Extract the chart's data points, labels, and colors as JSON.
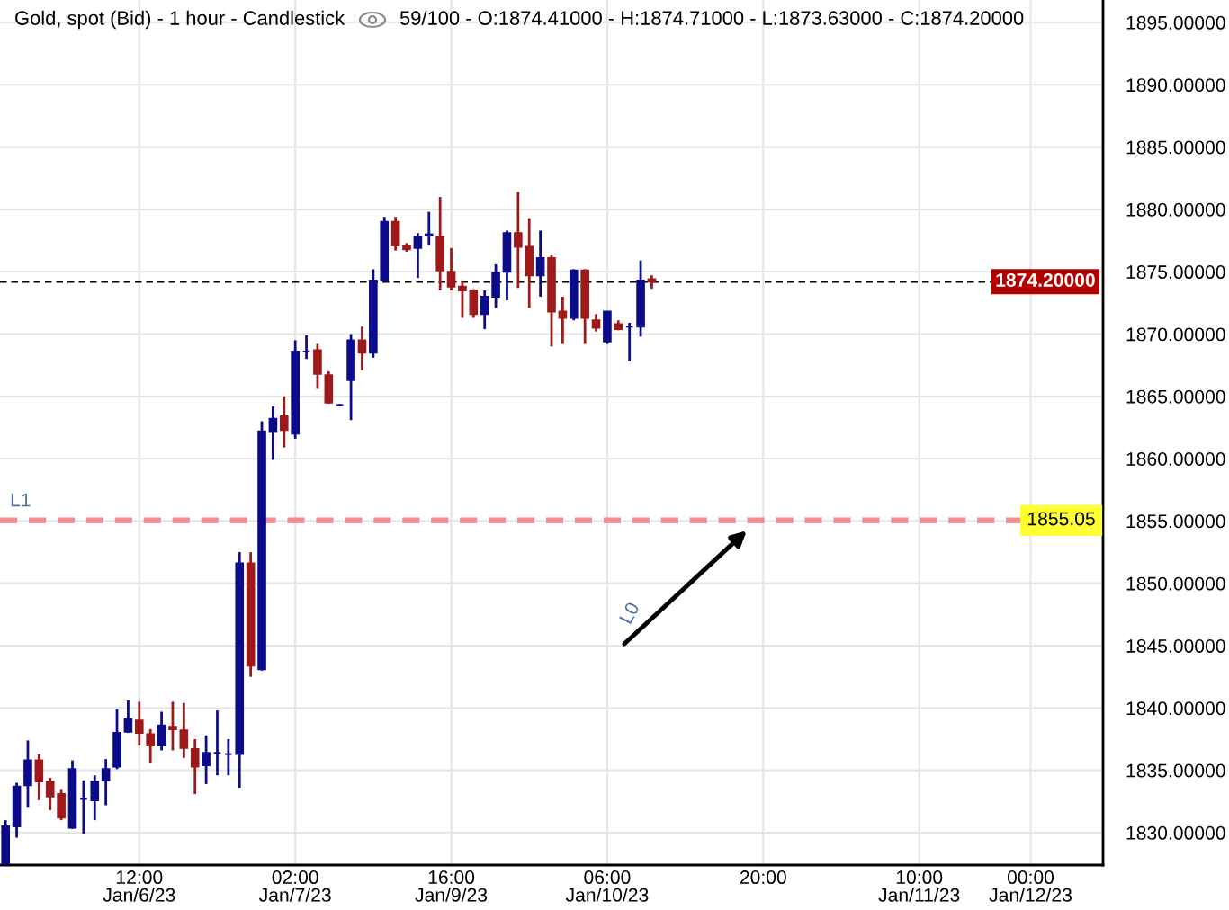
{
  "chart_data": {
    "type": "candlestick",
    "title": "Gold, spot (Bid) - 1 hour - Candlestick",
    "subtitle": "59/100 - O:1874.41000 - H:1874.71000 - L:1873.63000 - C:1874.20000",
    "categories": [
      null,
      null,
      null,
      null,
      null,
      null,
      null,
      null,
      null,
      null,
      null,
      null,
      "12:00\nJan/6/23",
      null,
      null,
      null,
      null,
      null,
      null,
      null,
      null,
      null,
      null,
      null,
      null,
      null,
      "02:00\nJan/7/23",
      null,
      null,
      null,
      null,
      null,
      null,
      null,
      null,
      null,
      null,
      null,
      null,
      null,
      "16:00\nJan/9/23",
      null,
      null,
      null,
      null,
      null,
      null,
      null,
      null,
      null,
      null,
      null,
      null,
      null,
      "06:00\nJan/10/23",
      null,
      null,
      null,
      null,
      null,
      null,
      null,
      null,
      null,
      null,
      null,
      null,
      null,
      "20:00",
      null,
      null,
      null,
      null,
      null,
      null,
      null,
      null,
      null,
      null,
      null,
      null,
      null,
      "10:00\nJan/11/23",
      null,
      null,
      null,
      null,
      null,
      null,
      null,
      null,
      null,
      "00:00\nJan/12/23",
      null,
      null,
      null,
      null,
      null,
      null
    ],
    "ohlc": [
      [
        1827.5,
        1831.0,
        1827.5,
        1830.5
      ],
      [
        1830.5,
        1834.0,
        1829.6,
        1833.7
      ],
      [
        1833.8,
        1837.4,
        1832.0,
        1835.8
      ],
      [
        1835.8,
        1836.3,
        1832.6,
        1834.1
      ],
      [
        1834.1,
        1834.4,
        1831.8,
        1832.9
      ],
      [
        1833.1,
        1833.5,
        1831.0,
        1831.2
      ],
      [
        1830.4,
        1835.8,
        1830.3,
        1835.1
      ],
      [
        1832.7,
        1834.2,
        1829.9,
        1832.7
      ],
      [
        1832.6,
        1834.6,
        1831.0,
        1834.1
      ],
      [
        1834.2,
        1835.9,
        1832.2,
        1835.1
      ],
      [
        1835.3,
        1839.9,
        1835.1,
        1838.0
      ],
      [
        1838.1,
        1840.6,
        1838.0,
        1839.1
      ],
      [
        1839.0,
        1840.5,
        1837.0,
        1838.0
      ],
      [
        1837.9,
        1838.3,
        1835.6,
        1837.0
      ],
      [
        1837.0,
        1839.7,
        1836.6,
        1838.6
      ],
      [
        1838.5,
        1840.5,
        1836.6,
        1838.3
      ],
      [
        1838.2,
        1840.4,
        1836.0,
        1836.8
      ],
      [
        1836.7,
        1837.5,
        1833.1,
        1835.3
      ],
      [
        1835.4,
        1837.8,
        1833.9,
        1836.4
      ],
      [
        1836.4,
        1839.8,
        1834.6,
        1836.4
      ],
      [
        1836.3,
        1837.5,
        1834.6,
        1836.3
      ],
      [
        1836.3,
        1852.5,
        1833.6,
        1851.6
      ],
      [
        1851.6,
        1852.5,
        1842.5,
        1843.4
      ],
      [
        1843.1,
        1863.0,
        1843.0,
        1862.2
      ],
      [
        1862.2,
        1864.2,
        1859.9,
        1863.2
      ],
      [
        1863.4,
        1865.0,
        1860.9,
        1862.3
      ],
      [
        1862.0,
        1869.5,
        1861.6,
        1868.6
      ],
      [
        1868.6,
        1869.9,
        1868.0,
        1868.6
      ],
      [
        1868.7,
        1869.2,
        1865.6,
        1866.8
      ],
      [
        1866.7,
        1867.0,
        1864.4,
        1864.5
      ],
      [
        1864.3,
        1864.4,
        1864.2,
        1864.3
      ],
      [
        1866.3,
        1870.0,
        1863.1,
        1869.5
      ],
      [
        1869.5,
        1870.6,
        1867.1,
        1868.5
      ],
      [
        1868.5,
        1875.2,
        1868.1,
        1874.3
      ],
      [
        1874.3,
        1879.4,
        1874.2,
        1879.0
      ],
      [
        1879.0,
        1879.4,
        1876.7,
        1877.1
      ],
      [
        1877.1,
        1877.3,
        1876.6,
        1876.8
      ],
      [
        1876.9,
        1878.1,
        1874.5,
        1877.8
      ],
      [
        1877.9,
        1879.8,
        1877.1,
        1878.0
      ],
      [
        1877.8,
        1881.0,
        1873.5,
        1875.1
      ],
      [
        1875.0,
        1876.9,
        1873.5,
        1873.8
      ],
      [
        1873.8,
        1874.3,
        1871.3,
        1873.5
      ],
      [
        1873.5,
        1873.6,
        1871.3,
        1871.6
      ],
      [
        1871.6,
        1873.5,
        1870.4,
        1873.0
      ],
      [
        1873.0,
        1875.6,
        1872.1,
        1874.9
      ],
      [
        1875.0,
        1878.3,
        1872.7,
        1878.1
      ],
      [
        1878.1,
        1881.4,
        1873.7,
        1877.0
      ],
      [
        1877.0,
        1879.3,
        1872.1,
        1874.7
      ],
      [
        1874.7,
        1878.3,
        1873.0,
        1876.1
      ],
      [
        1876.1,
        1876.3,
        1869.0,
        1871.8
      ],
      [
        1871.8,
        1873.0,
        1869.2,
        1871.3
      ],
      [
        1871.3,
        1875.2,
        1871.1,
        1875.1
      ],
      [
        1875.1,
        1875.2,
        1869.2,
        1871.3
      ],
      [
        1871.1,
        1871.6,
        1870.2,
        1870.5
      ],
      [
        1869.4,
        1871.8,
        1869.2,
        1871.8
      ],
      [
        1870.8,
        1871.1,
        1870.3,
        1870.4
      ],
      [
        1870.6,
        1870.9,
        1867.8,
        1870.6
      ],
      [
        1870.6,
        1875.9,
        1869.8,
        1874.3
      ],
      [
        1874.41,
        1874.71,
        1873.63,
        1874.2
      ],
      null,
      null,
      null,
      null,
      null,
      null,
      null,
      null,
      null,
      null,
      null,
      null,
      null,
      null,
      null,
      null,
      null,
      null,
      null,
      null,
      null,
      null,
      null,
      null,
      null,
      null,
      null,
      null,
      null,
      null,
      null,
      null,
      null,
      null,
      null,
      null,
      null,
      null,
      null,
      null
    ],
    "colors": [
      "#0c0c8a",
      "#0c0c8a",
      "#0c0c8a",
      "#9e1a1a",
      "#9e1a1a",
      "#9e1a1a",
      "#0c0c8a",
      "#0c0c8a",
      "#0c0c8a",
      "#0c0c8a",
      "#0c0c8a",
      "#0c0c8a",
      "#9e1a1a",
      "#9e1a1a",
      "#0c0c8a",
      "#9e1a1a",
      "#9e1a1a",
      "#9e1a1a",
      "#0c0c8a",
      "#0c0c8a",
      "#0c0c8a",
      "#0c0c8a",
      "#9e1a1a",
      "#0c0c8a",
      "#0c0c8a",
      "#9e1a1a",
      "#0c0c8a",
      "#0c0c8a",
      "#9e1a1a",
      "#9e1a1a",
      "#0c0c8a",
      "#0c0c8a",
      "#9e1a1a",
      "#0c0c8a",
      "#0c0c8a",
      "#9e1a1a",
      "#9e1a1a",
      "#0c0c8a",
      "#0c0c8a",
      "#9e1a1a",
      "#9e1a1a",
      "#9e1a1a",
      "#9e1a1a",
      "#0c0c8a",
      "#0c0c8a",
      "#0c0c8a",
      "#9e1a1a",
      "#9e1a1a",
      "#0c0c8a",
      "#9e1a1a",
      "#9e1a1a",
      "#0c0c8a",
      "#9e1a1a",
      "#9e1a1a",
      "#0c0c8a",
      "#9e1a1a",
      "#0c0c8a",
      "#0c0c8a",
      "#9e1a1a",
      null,
      null,
      null,
      null,
      null,
      null,
      null,
      null,
      null,
      null,
      null,
      null,
      null,
      null,
      null,
      null,
      null,
      null,
      null,
      null,
      null,
      null,
      null,
      null,
      null,
      null,
      null,
      null,
      null,
      null,
      null,
      null,
      null,
      null,
      null,
      null,
      null,
      null,
      null,
      null
    ],
    "ref_lines": [
      {
        "axis": "y",
        "value": 1874.2,
        "label": "1874.20000",
        "color": "#000000",
        "line_style": "dashed"
      },
      {
        "axis": "y",
        "value": 1855.05,
        "label": "1855.05",
        "color": "#ee8e8e",
        "line_style": "dashed"
      }
    ],
    "annotations": [
      {
        "text": "L1",
        "y": 1855.05
      },
      "L0"
    ],
    "ylim": [
      1827.4,
      1896.8
    ],
    "yticks": [
      {
        "value": 1830,
        "label": "1830.00000"
      },
      {
        "value": 1835,
        "label": "1835.00000"
      },
      {
        "value": 1840,
        "label": "1840.00000"
      },
      {
        "value": 1845,
        "label": "1845.00000"
      },
      {
        "value": 1850,
        "label": "1850.00000"
      },
      {
        "value": 1855,
        "label": "1855.00000"
      },
      {
        "value": 1860,
        "label": "1860.00000"
      },
      {
        "value": 1865,
        "label": "1865.00000"
      },
      {
        "value": 1870,
        "label": "1870.00000"
      },
      {
        "value": 1875,
        "label": "1875.00000"
      },
      {
        "value": 1880,
        "label": "1880.00000"
      },
      {
        "value": 1885,
        "label": "1885.00000"
      },
      {
        "value": 1890,
        "label": "1890.00000"
      },
      {
        "value": 1895,
        "label": "1895.00000"
      }
    ],
    "grid": true
  }
}
